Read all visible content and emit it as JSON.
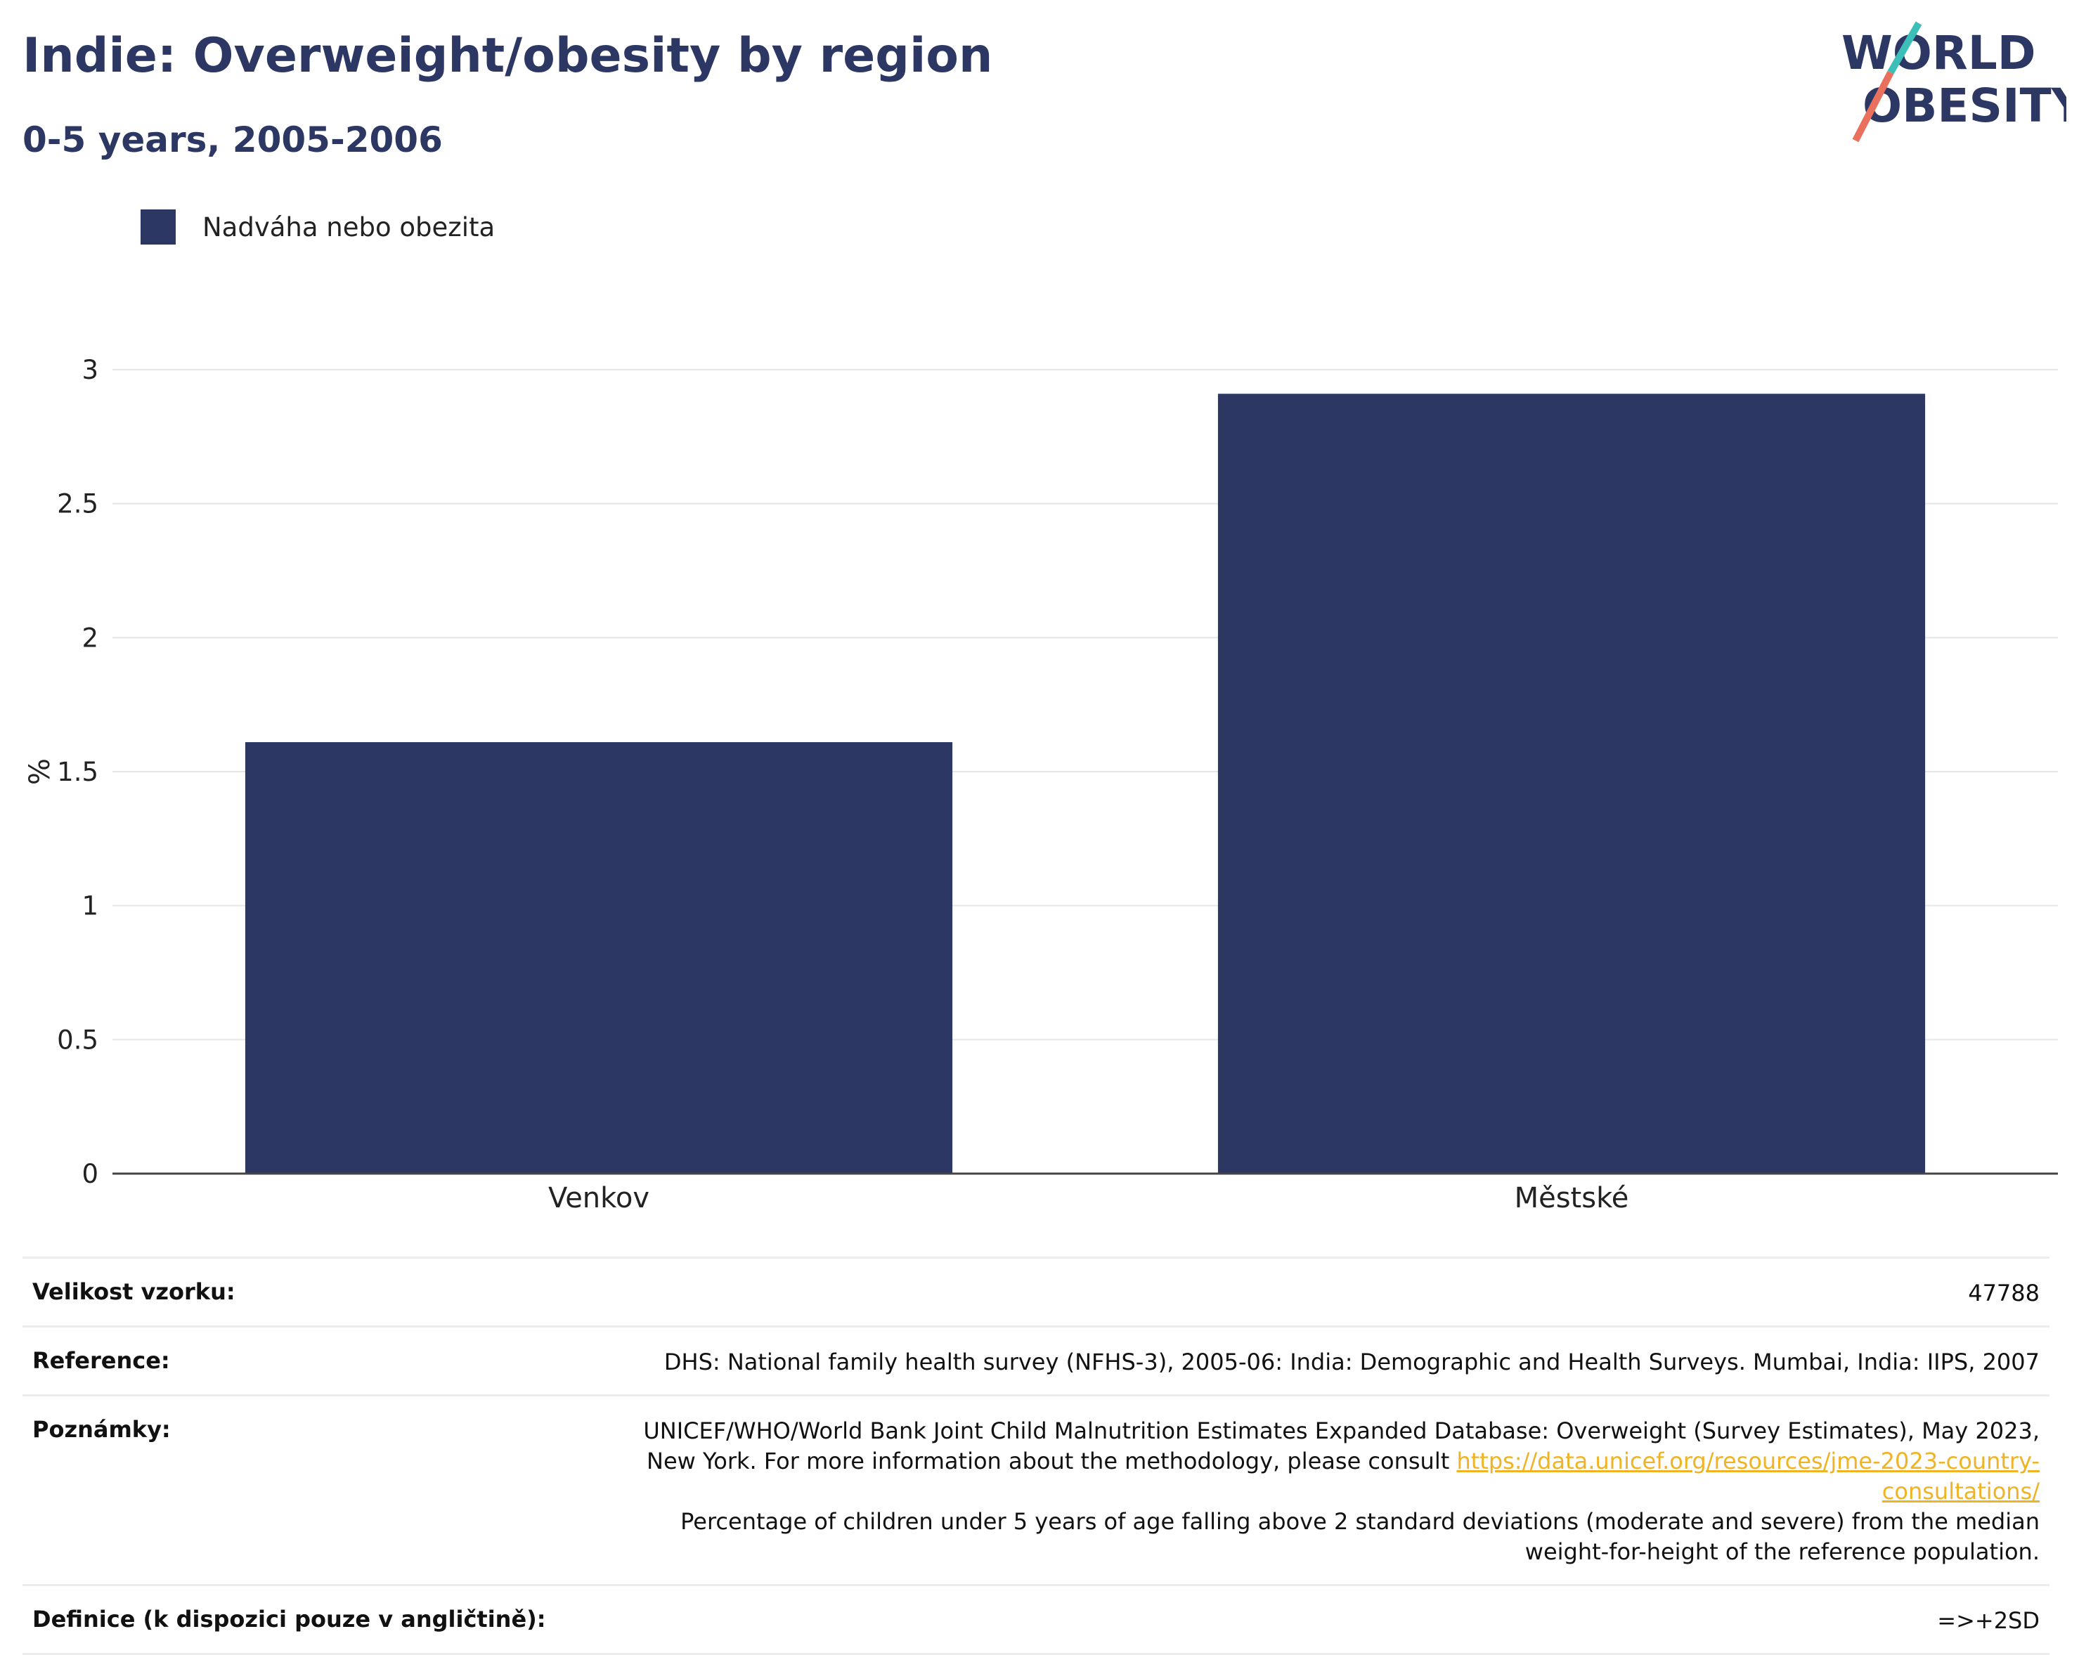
{
  "header": {
    "title": "Indie: Overweight/obesity by region",
    "subtitle": "0-5 years, 2005-2006"
  },
  "logo": {
    "line1": "WORLD",
    "line2": "OBESITY"
  },
  "legend": {
    "label": "Nadváha nebo obezita",
    "color": "#2c3764"
  },
  "chart_data": {
    "type": "bar",
    "categories": [
      "Venkov",
      "Městské"
    ],
    "series": [
      {
        "name": "Nadváha nebo obezita",
        "values": [
          1.61,
          2.91
        ],
        "color": "#2c3764"
      }
    ],
    "ylabel": "%",
    "xlabel": "",
    "ylim": [
      0,
      3.0
    ],
    "yticks": [
      "0",
      "0.5",
      "1",
      "1.5",
      "2",
      "2.5",
      "3"
    ],
    "grid": true,
    "legend_position": "top-left"
  },
  "info": {
    "sample_label": "Velikost vzorku:",
    "sample_value": "47788",
    "reference_label": "Reference:",
    "reference_value": "DHS: National family health survey (NFHS-3), 2005-06: India: Demographic and Health Surveys. Mumbai, India: IIPS, 2007",
    "notes_label": "Poznámky:",
    "notes_text1": "UNICEF/WHO/World Bank Joint Child Malnutrition Estimates Expanded Database: Overweight (Survey Estimates), May 2023, New York. For more information about the methodology, please consult",
    "notes_link": "https://data.unicef.org/resources/jme-2023-country-consultations/",
    "notes_text2": "Percentage of children under 5 years of age falling above 2 standard deviations (moderate and severe) from the median weight-for-height of the reference population.",
    "definition_label": "Definice (k dispozici pouze v angličtině):",
    "definition_value": "=>+2SD"
  }
}
